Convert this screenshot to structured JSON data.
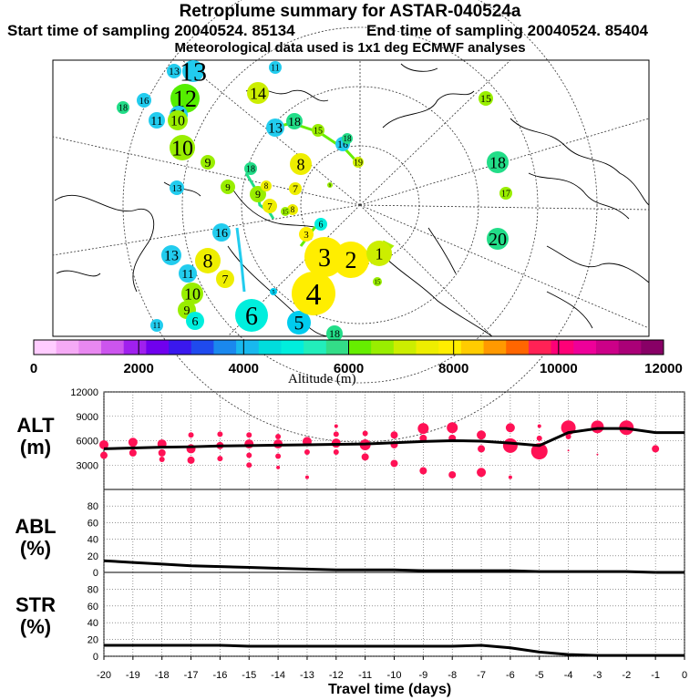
{
  "header": {
    "title": "Retroplume summary for ASTAR-040524a",
    "start": "Start time of sampling 20040524. 85134",
    "end": "End time of sampling 20040524. 85404",
    "met": "Meteorological data used is 1x1 deg ECMWF analyses"
  },
  "colors": {
    "colorbar": [
      "#ffccff",
      "#f5aaf5",
      "#e888f0",
      "#cc55ee",
      "#a020ee",
      "#7000ee",
      "#3a18ee",
      "#1f4aee",
      "#1a88ee",
      "#18b8ee",
      "#00dddd",
      "#00eedd",
      "#22eebb",
      "#33dd88",
      "#66ee00",
      "#99ee00",
      "#ccee00",
      "#eeee00",
      "#ffee00",
      "#ffcc00",
      "#ff9900",
      "#ff6600",
      "#ff2255",
      "#ff0077",
      "#ee0099",
      "#cc0088",
      "#aa0077",
      "#880066"
    ],
    "stat_dot": "#ff1155",
    "line": "#000000"
  },
  "map": {
    "labels": [
      {
        "t": "13",
        "d": "13",
        "c": "#22ccee"
      },
      {
        "t": "12",
        "d": "12",
        "c": "#55ee00"
      },
      {
        "t": "11",
        "d": "11",
        "c": "#22ccee"
      },
      {
        "t": "10",
        "d": "10",
        "c": "#99ee00"
      },
      {
        "t": "9",
        "d": "9",
        "c": "#99ee00"
      },
      {
        "t": "8",
        "d": "8",
        "c": "#eeee00"
      },
      {
        "t": "7",
        "d": "7",
        "c": "#eeee00"
      },
      {
        "t": "6",
        "d": "6",
        "c": "#00eedd"
      },
      {
        "t": "5",
        "d": "5",
        "c": "#00ccee"
      },
      {
        "t": "4",
        "d": "4",
        "c": "#ffee00"
      },
      {
        "t": "3",
        "d": "3",
        "c": "#ffee00"
      },
      {
        "t": "2",
        "d": "2",
        "c": "#ffee00"
      },
      {
        "t": "1",
        "d": "1",
        "c": "#ccee00"
      },
      {
        "t": "15",
        "d": "15",
        "c": "#99ee00"
      },
      {
        "t": "18",
        "d": "18",
        "c": "#22dd88"
      },
      {
        "t": "20",
        "d": "20",
        "c": "#22dd88"
      },
      {
        "t": "16",
        "d": "16",
        "c": "#22ccee"
      },
      {
        "t": "17",
        "d": "17",
        "c": "#99ee00"
      },
      {
        "t": "14",
        "d": "14",
        "c": "#ccee00"
      },
      {
        "t": "19",
        "d": "19",
        "c": "#ccee00"
      }
    ]
  },
  "colorbar": {
    "ticks": [
      "0",
      "2000",
      "4000",
      "6000",
      "8000",
      "10000",
      "12000"
    ],
    "label": "Altitude (m)"
  },
  "panels": {
    "alt": {
      "label1": "ALT",
      "label2": "(m)",
      "ticks": [
        "12000",
        "9000",
        "6000",
        "3000"
      ]
    },
    "abl": {
      "label1": "ABL",
      "label2": "(%)",
      "ticks": [
        "80",
        "60",
        "40",
        "20",
        "0"
      ]
    },
    "str": {
      "label1": "STR",
      "label2": "(%)",
      "ticks": [
        "80",
        "60",
        "40",
        "20",
        "0"
      ]
    }
  },
  "chart_data": [
    {
      "type": "line",
      "title": "ALT",
      "xlabel": "Travel time (days)",
      "ylabel": "(m)",
      "x": [
        -20,
        -19,
        -18,
        -17,
        -16,
        -15,
        -14,
        -13,
        -12,
        -11,
        -10,
        -9,
        -8,
        -7,
        -6,
        -5,
        -4,
        -3,
        -2,
        -1,
        0
      ],
      "y": [
        5000,
        5100,
        5200,
        5250,
        5350,
        5400,
        5450,
        5500,
        5550,
        5600,
        5750,
        5900,
        6000,
        5950,
        5700,
        5400,
        7000,
        7500,
        7500,
        7000,
        7000
      ],
      "xlim": [
        -20,
        0
      ],
      "ylim": [
        0,
        12000
      ],
      "cluster_points": [
        {
          "x": -20,
          "y": 5500,
          "s": 5
        },
        {
          "x": -20,
          "y": 4200,
          "s": 4
        },
        {
          "x": -19,
          "y": 5800,
          "s": 5
        },
        {
          "x": -19,
          "y": 4500,
          "s": 4
        },
        {
          "x": -18,
          "y": 5600,
          "s": 5
        },
        {
          "x": -18,
          "y": 4500,
          "s": 4
        },
        {
          "x": -18,
          "y": 3700,
          "s": 3
        },
        {
          "x": -17,
          "y": 6700,
          "s": 3
        },
        {
          "x": -17,
          "y": 5000,
          "s": 5
        },
        {
          "x": -17,
          "y": 3600,
          "s": 4
        },
        {
          "x": -16,
          "y": 6800,
          "s": 3
        },
        {
          "x": -16,
          "y": 5400,
          "s": 4
        },
        {
          "x": -16,
          "y": 3800,
          "s": 3
        },
        {
          "x": -15,
          "y": 6700,
          "s": 3
        },
        {
          "x": -15,
          "y": 5600,
          "s": 5
        },
        {
          "x": -15,
          "y": 4200,
          "s": 3
        },
        {
          "x": -15,
          "y": 3000,
          "s": 3
        },
        {
          "x": -14,
          "y": 6500,
          "s": 3
        },
        {
          "x": -14,
          "y": 5600,
          "s": 5
        },
        {
          "x": -14,
          "y": 4100,
          "s": 3
        },
        {
          "x": -14,
          "y": 2700,
          "s": 2
        },
        {
          "x": -13,
          "y": 5900,
          "s": 5
        },
        {
          "x": -13,
          "y": 4600,
          "s": 3
        },
        {
          "x": -13,
          "y": 1500,
          "s": 2
        },
        {
          "x": -12,
          "y": 7800,
          "s": 2
        },
        {
          "x": -12,
          "y": 6800,
          "s": 3
        },
        {
          "x": -12,
          "y": 5700,
          "s": 5
        },
        {
          "x": -12,
          "y": 4600,
          "s": 3
        },
        {
          "x": -11,
          "y": 6900,
          "s": 3
        },
        {
          "x": -11,
          "y": 5500,
          "s": 6
        },
        {
          "x": -11,
          "y": 4000,
          "s": 4
        },
        {
          "x": -10,
          "y": 6700,
          "s": 4
        },
        {
          "x": -10,
          "y": 5500,
          "s": 4
        },
        {
          "x": -10,
          "y": 3200,
          "s": 4
        },
        {
          "x": -9,
          "y": 7500,
          "s": 6
        },
        {
          "x": -9,
          "y": 6300,
          "s": 4
        },
        {
          "x": -9,
          "y": 2300,
          "s": 4
        },
        {
          "x": -8,
          "y": 7600,
          "s": 6
        },
        {
          "x": -8,
          "y": 6300,
          "s": 4
        },
        {
          "x": -8,
          "y": 1800,
          "s": 4
        },
        {
          "x": -7,
          "y": 6700,
          "s": 5
        },
        {
          "x": -7,
          "y": 5000,
          "s": 4
        },
        {
          "x": -7,
          "y": 2100,
          "s": 5
        },
        {
          "x": -6,
          "y": 7600,
          "s": 5
        },
        {
          "x": -6,
          "y": 5400,
          "s": 8
        },
        {
          "x": -6,
          "y": 1500,
          "s": 2
        },
        {
          "x": -5,
          "y": 7800,
          "s": 2
        },
        {
          "x": -5,
          "y": 6300,
          "s": 3
        },
        {
          "x": -5,
          "y": 4700,
          "s": 9
        },
        {
          "x": -4,
          "y": 7600,
          "s": 8
        },
        {
          "x": -4,
          "y": 6500,
          "s": 3
        },
        {
          "x": -4,
          "y": 4800,
          "s": 1
        },
        {
          "x": -3,
          "y": 7700,
          "s": 7
        },
        {
          "x": -3,
          "y": 4300,
          "s": 1
        },
        {
          "x": -2,
          "y": 7600,
          "s": 8
        },
        {
          "x": -1,
          "y": 5000,
          "s": 4
        }
      ]
    },
    {
      "type": "line",
      "title": "ABL",
      "xlabel": "Travel time (days)",
      "ylabel": "(%)",
      "x": [
        -20,
        -19,
        -18,
        -17,
        -16,
        -15,
        -14,
        -13,
        -12,
        -11,
        -10,
        -9,
        -8,
        -7,
        -6,
        -5,
        -4,
        -3,
        -2,
        -1,
        0
      ],
      "y": [
        14,
        12,
        10,
        8,
        7,
        6,
        5,
        4,
        3,
        3,
        3,
        2,
        2,
        2,
        2,
        1,
        1,
        1,
        1,
        0,
        0
      ],
      "xlim": [
        -20,
        0
      ],
      "ylim": [
        0,
        100
      ]
    },
    {
      "type": "line",
      "title": "STR",
      "xlabel": "Travel time (days)",
      "ylabel": "(%)",
      "x": [
        -20,
        -19,
        -18,
        -17,
        -16,
        -15,
        -14,
        -13,
        -12,
        -11,
        -10,
        -9,
        -8,
        -7,
        -6,
        -5,
        -4,
        -3,
        -2,
        -1,
        0
      ],
      "y": [
        13,
        13,
        13,
        13,
        13,
        12,
        12,
        12,
        12,
        12,
        12,
        12,
        12,
        13,
        10,
        5,
        2,
        1,
        1,
        1,
        1
      ],
      "xlim": [
        -20,
        0
      ],
      "ylim": [
        0,
        100
      ],
      "xticks": [
        "-20",
        "-19",
        "-18",
        "-17",
        "-16",
        "-15",
        "-14",
        "-13",
        "-12",
        "-11",
        "-10",
        "-9",
        "-8",
        "-7",
        "-6",
        "-5",
        "-4",
        "-3",
        "-2",
        "-1",
        "0"
      ]
    }
  ]
}
